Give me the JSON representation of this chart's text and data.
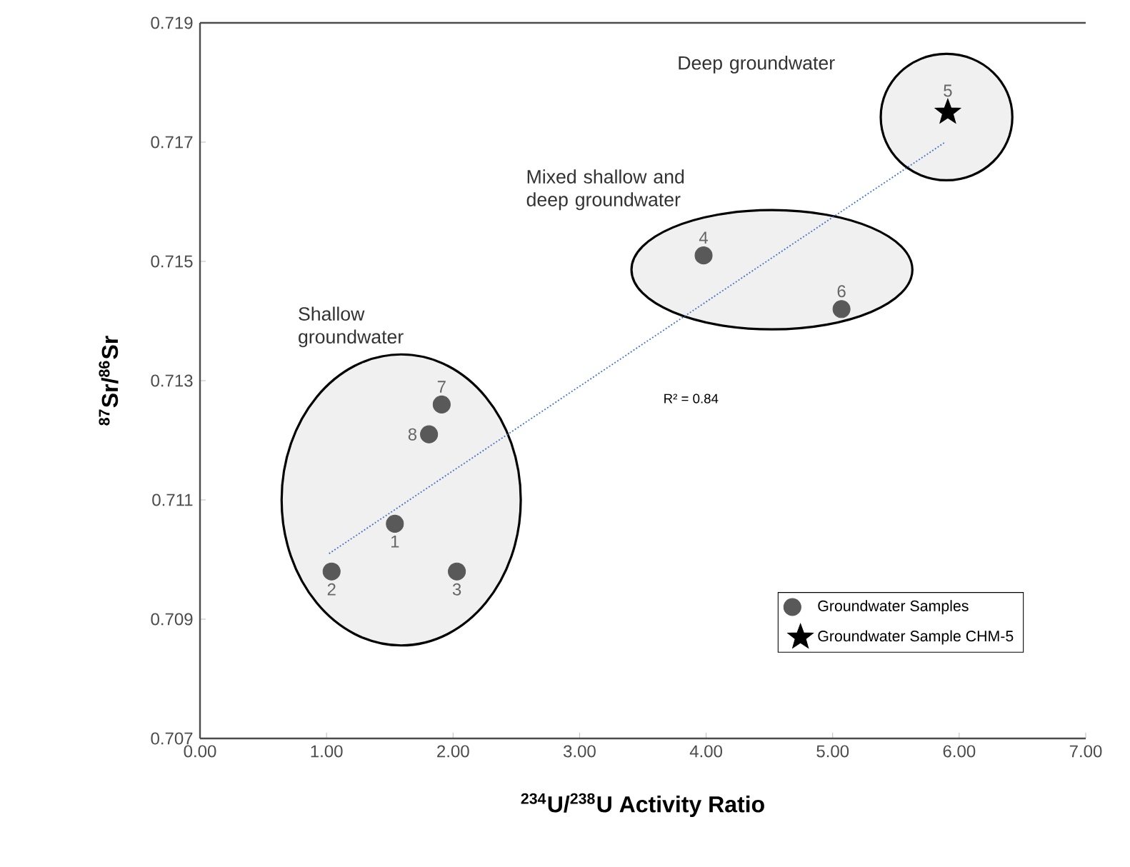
{
  "chart_data": {
    "type": "scatter",
    "xlabel": "$^{234}$U/$^{238}$U Activity Ratio",
    "ylabel": "$^{87}$Sr/$^{86}$Sr",
    "xlim": [
      0,
      7
    ],
    "ylim": [
      0.707,
      0.719
    ],
    "xticks": [
      {
        "value": 0,
        "label": "0.00"
      },
      {
        "value": 1,
        "label": "1.00"
      },
      {
        "value": 2,
        "label": "2.00"
      },
      {
        "value": 3,
        "label": "3.00"
      },
      {
        "value": 4,
        "label": "4.00"
      },
      {
        "value": 5,
        "label": "5.00"
      },
      {
        "value": 6,
        "label": "6.00"
      },
      {
        "value": 7,
        "label": "7.00"
      }
    ],
    "yticks": [
      0.707,
      0.709,
      0.711,
      0.713,
      0.715,
      0.717,
      0.719
    ],
    "series": [
      {
        "name": "Groundwater Samples",
        "color": "#595959",
        "marker": "circle",
        "x": [
          1.54,
          1.04,
          2.03,
          3.98,
          5.07,
          1.91,
          1.81
        ],
        "values": [
          0.7106,
          0.7098,
          0.7098,
          0.7151,
          0.7142,
          0.7126,
          0.7121
        ]
      },
      {
        "name": "Groundwater Sample CHM-5",
        "color": "#000000",
        "marker": "star",
        "x": [
          5.91
        ],
        "values": [
          0.7175
        ]
      },
      {
        "type": "line",
        "color": "#4472c4",
        "line_style": "dotted",
        "marker": "none",
        "x": [
          1.02,
          5.89
        ],
        "values": [
          0.7101,
          0.717
        ]
      }
    ],
    "annotations": [
      "R² = 0.84",
      "Shallow groundwater",
      "Mixed shallow and deep groundwater",
      "Deep groundwater",
      {
        "text": "1",
        "x": 1.54,
        "y": 0.7106
      },
      {
        "text": "2",
        "x": 1.04,
        "y": 0.7098
      },
      {
        "text": "3",
        "x": 2.03,
        "y": 0.7098
      },
      {
        "text": "4",
        "x": 3.98,
        "y": 0.7151
      },
      {
        "text": "6",
        "x": 5.07,
        "y": 0.7142
      },
      {
        "text": "7",
        "x": 1.91,
        "y": 0.7126
      },
      {
        "text": "8",
        "x": 1.81,
        "y": 0.7121
      },
      {
        "text": "5",
        "x": 5.91,
        "y": 0.7175
      }
    ],
    "grid": false,
    "legend": "bottom right"
  }
}
